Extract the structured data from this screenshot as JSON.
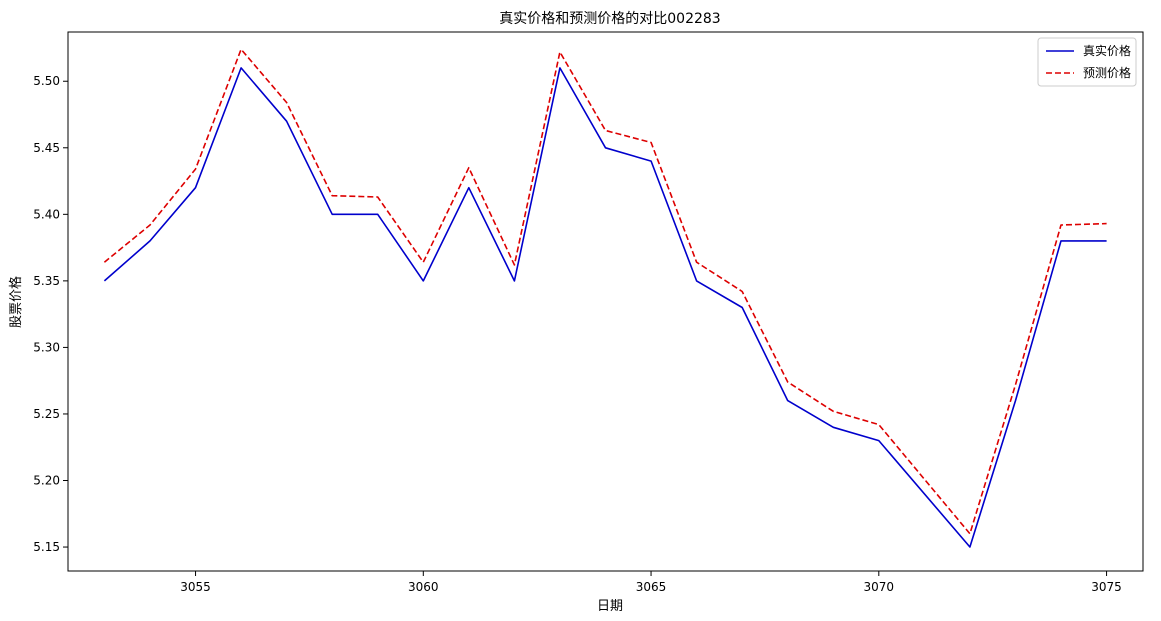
{
  "chart_data": {
    "type": "line",
    "title": "真实价格和预测价格的对比002283",
    "xlabel": "日期",
    "ylabel": "股票价格",
    "xlim": [
      3052.2,
      3075.8
    ],
    "ylim": [
      5.132,
      5.537
    ],
    "xticks": [
      3055,
      3060,
      3065,
      3070,
      3075
    ],
    "yticks": [
      5.15,
      5.2,
      5.25,
      5.3,
      5.35,
      5.4,
      5.45,
      5.5
    ],
    "ytick_labels": [
      "5.15",
      "5.20",
      "5.25",
      "5.30",
      "5.35",
      "5.40",
      "5.45",
      "5.50"
    ],
    "grid": false,
    "legend_position": "top-right",
    "x": [
      3053,
      3054,
      3055,
      3056,
      3057,
      3058,
      3059,
      3060,
      3061,
      3062,
      3063,
      3064,
      3065,
      3066,
      3067,
      3068,
      3069,
      3070,
      3072,
      3073,
      3074,
      3075
    ],
    "series": [
      {
        "name": "真实价格",
        "color": "#0000cc",
        "style": "solid",
        "values": [
          5.35,
          5.38,
          5.42,
          5.51,
          5.47,
          5.4,
          5.4,
          5.35,
          5.42,
          5.35,
          5.51,
          5.45,
          5.44,
          5.35,
          5.33,
          5.26,
          5.24,
          5.23,
          5.15,
          5.26,
          5.38,
          5.38
        ]
      },
      {
        "name": "预测价格",
        "color": "#dd0000",
        "style": "dashed",
        "values": [
          5.364,
          5.392,
          5.434,
          5.524,
          5.484,
          5.414,
          5.413,
          5.364,
          5.435,
          5.362,
          5.522,
          5.463,
          5.454,
          5.364,
          5.342,
          5.274,
          5.252,
          5.242,
          5.16,
          5.272,
          5.392,
          5.393
        ]
      }
    ]
  }
}
